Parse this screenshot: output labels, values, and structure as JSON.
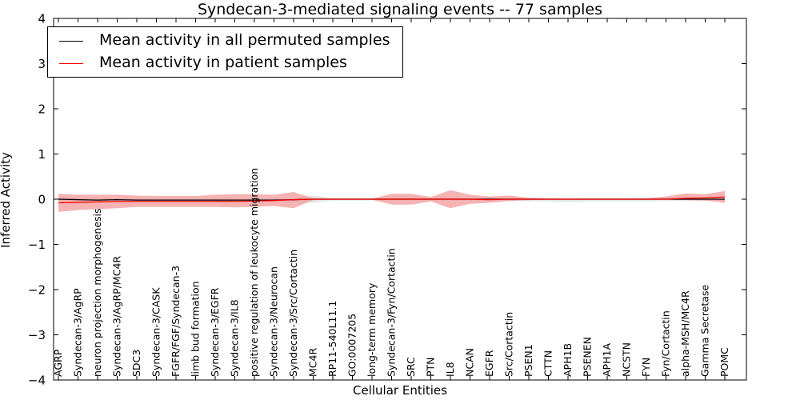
{
  "chart_data": {
    "type": "line",
    "title": "Syndecan-3-mediated signaling events -- 77 samples",
    "xlabel": "Cellular Entities",
    "ylabel": "Inferred Activity",
    "ylim": [
      -4,
      4
    ],
    "yticks": [
      "4",
      "3",
      "2",
      "1",
      "0",
      "−1",
      "−2",
      "−3",
      "−4"
    ],
    "categories": [
      "AGRP",
      "Syndecan-3/AgRP",
      "neuron projection morphogenesis",
      "Syndecan-3/AgRP/MC4R",
      "SDC3",
      "Syndecan-3/CASK",
      "FGFR/FGF/Syndecan-3",
      "limb bud formation",
      "Syndecan-3/EGFR",
      "Syndecan-3/IL8",
      "positive regulation of leukocyte migration",
      "Syndecan-3/Neurocan",
      "Syndecan-3/Src/Cortactin",
      "MC4R",
      "RP11-540L11.1",
      "GO:0007205",
      "long-term memory",
      "Syndecan-3/Fyn/Cortactin",
      "SRC",
      "PTN",
      "IL8",
      "NCAN",
      "EGFR",
      "Src/Cortactin",
      "PSEN1",
      "CTTN",
      "APH1B",
      "PSENEN",
      "APH1A",
      "NCSTN",
      "FYN",
      "Fyn/Cortactin",
      "alpha-MSH/MC4R",
      "Gamma Secretase",
      "POMC"
    ],
    "legend_position": "top-left",
    "series": [
      {
        "name": "Mean activity in all permuted samples",
        "color": "#000000",
        "band_color": "#cccccc",
        "values": [
          0.0,
          -0.01,
          -0.02,
          -0.01,
          -0.02,
          -0.02,
          -0.02,
          -0.02,
          -0.02,
          -0.02,
          -0.02,
          -0.02,
          -0.01,
          0.0,
          0.0,
          0.0,
          0.0,
          0.0,
          0.0,
          0.0,
          0.0,
          0.0,
          0.0,
          0.0,
          0.0,
          0.0,
          0.0,
          0.0,
          0.0,
          0.0,
          0.0,
          0.0,
          0.0,
          0.0,
          0.0
        ],
        "lower": [
          -0.04,
          -0.05,
          -0.06,
          -0.05,
          -0.06,
          -0.06,
          -0.06,
          -0.06,
          -0.06,
          -0.06,
          -0.06,
          -0.06,
          -0.05,
          -0.08,
          -0.03,
          -0.03,
          -0.03,
          -0.03,
          -0.03,
          -0.03,
          -0.03,
          -0.03,
          -0.03,
          -0.03,
          -0.05,
          -0.05,
          -0.06,
          -0.05,
          -0.05,
          -0.05,
          -0.05,
          -0.04,
          -0.04,
          -0.04,
          -0.04
        ],
        "upper": [
          0.04,
          0.03,
          0.02,
          0.03,
          0.02,
          0.02,
          0.02,
          0.02,
          0.02,
          0.02,
          0.02,
          0.02,
          0.03,
          0.08,
          0.03,
          0.03,
          0.03,
          0.03,
          0.03,
          0.03,
          0.03,
          0.03,
          0.03,
          0.03,
          0.03,
          0.03,
          0.02,
          0.03,
          0.03,
          0.03,
          0.03,
          0.04,
          0.04,
          0.04,
          0.04
        ]
      },
      {
        "name": "Mean activity in patient samples",
        "color": "#ff0000",
        "band_color": "#f08080",
        "values": [
          -0.08,
          -0.07,
          -0.06,
          -0.05,
          -0.05,
          -0.05,
          -0.05,
          -0.05,
          -0.05,
          -0.05,
          -0.04,
          -0.03,
          -0.01,
          0.0,
          0.0,
          0.0,
          0.0,
          0.0,
          0.0,
          0.0,
          0.0,
          0.0,
          -0.01,
          0.0,
          0.0,
          0.0,
          0.0,
          0.0,
          0.0,
          0.0,
          0.0,
          0.0,
          0.02,
          0.03,
          0.05
        ],
        "lower": [
          -0.28,
          -0.24,
          -0.22,
          -0.2,
          -0.17,
          -0.17,
          -0.17,
          -0.17,
          -0.17,
          -0.18,
          -0.17,
          -0.15,
          -0.2,
          -0.02,
          -0.01,
          -0.01,
          -0.01,
          -0.12,
          -0.12,
          -0.05,
          -0.2,
          -0.1,
          -0.08,
          -0.04,
          -0.02,
          -0.01,
          -0.01,
          -0.01,
          -0.01,
          -0.01,
          -0.01,
          -0.01,
          -0.02,
          -0.03,
          -0.08
        ],
        "upper": [
          0.12,
          0.1,
          0.1,
          0.1,
          0.08,
          0.07,
          0.07,
          0.07,
          0.1,
          0.11,
          0.11,
          0.1,
          0.16,
          0.02,
          0.01,
          0.01,
          0.01,
          0.12,
          0.12,
          0.05,
          0.2,
          0.1,
          0.06,
          0.08,
          0.03,
          0.01,
          0.01,
          0.01,
          0.01,
          0.01,
          0.02,
          0.06,
          0.13,
          0.11,
          0.18
        ]
      }
    ]
  }
}
